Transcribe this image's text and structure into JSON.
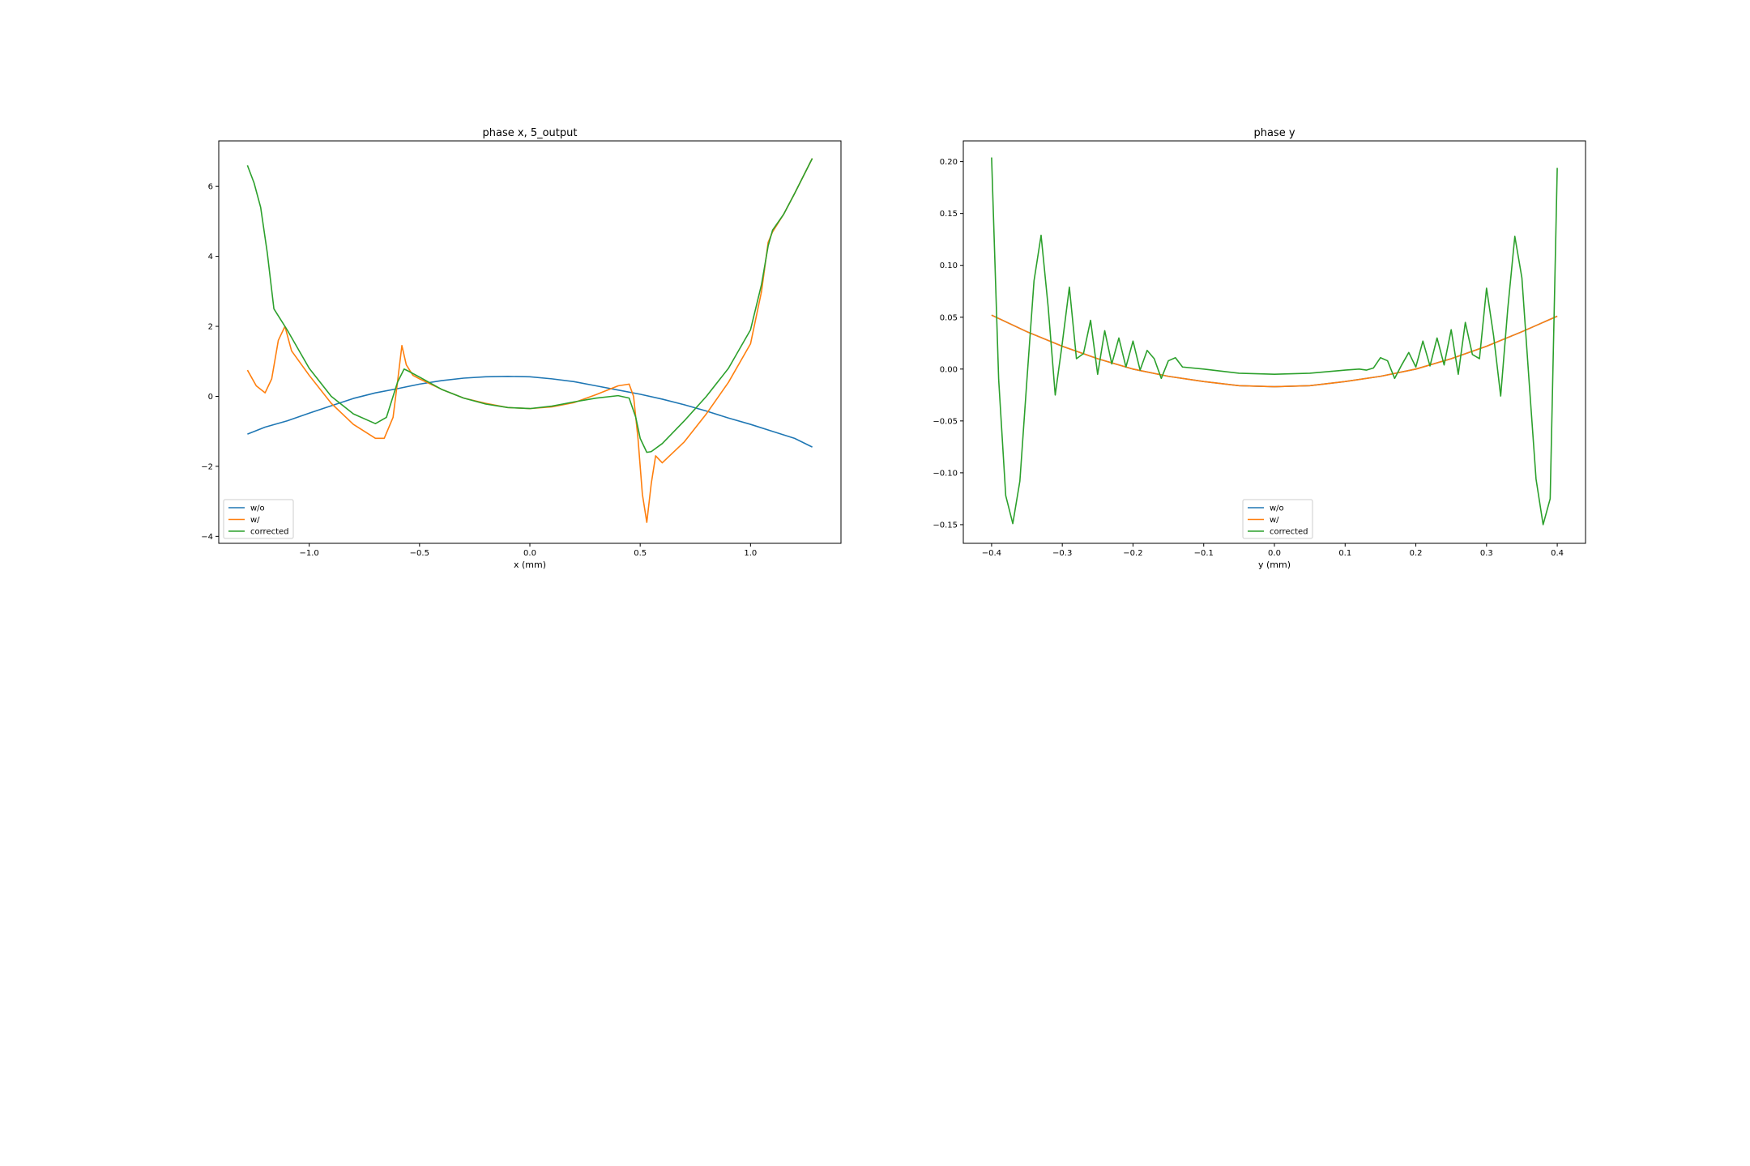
{
  "chart_data": [
    {
      "type": "line",
      "title": "phase x, 5_output",
      "xlabel": "x (mm)",
      "ylabel": "",
      "xlim": [
        -1.41,
        1.41
      ],
      "ylim": [
        -4.2,
        7.3
      ],
      "xticks": [
        -1.0,
        -0.5,
        0.0,
        0.5,
        1.0
      ],
      "xtick_labels": [
        "−1.0",
        "−0.5",
        "0.0",
        "0.5",
        "1.0"
      ],
      "yticks": [
        -4,
        -2,
        0,
        2,
        4,
        6
      ],
      "ytick_labels": [
        "−4",
        "−2",
        "0",
        "2",
        "4",
        "6"
      ],
      "grid": false,
      "legend_position": "lower-left",
      "series": [
        {
          "name": "w/o",
          "color": "#1f77b4",
          "x": [
            -1.28,
            -1.2,
            -1.1,
            -1.0,
            -0.9,
            -0.8,
            -0.7,
            -0.6,
            -0.5,
            -0.4,
            -0.3,
            -0.2,
            -0.1,
            0.0,
            0.1,
            0.2,
            0.3,
            0.4,
            0.5,
            0.6,
            0.7,
            0.8,
            0.9,
            1.0,
            1.1,
            1.2,
            1.28
          ],
          "y": [
            -1.08,
            -0.88,
            -0.7,
            -0.48,
            -0.27,
            -0.06,
            0.1,
            0.22,
            0.35,
            0.45,
            0.52,
            0.56,
            0.57,
            0.56,
            0.5,
            0.42,
            0.3,
            0.18,
            0.06,
            -0.08,
            -0.24,
            -0.42,
            -0.62,
            -0.8,
            -1.0,
            -1.2,
            -1.45
          ]
        },
        {
          "name": "w/",
          "color": "#ff7f0e",
          "x": [
            -1.28,
            -1.24,
            -1.2,
            -1.17,
            -1.14,
            -1.11,
            -1.08,
            -1.0,
            -0.9,
            -0.8,
            -0.7,
            -0.66,
            -0.62,
            -0.6,
            -0.58,
            -0.56,
            -0.53,
            -0.5,
            -0.4,
            -0.3,
            -0.2,
            -0.1,
            0.0,
            0.1,
            0.2,
            0.3,
            0.4,
            0.45,
            0.47,
            0.49,
            0.51,
            0.53,
            0.55,
            0.57,
            0.6,
            0.7,
            0.8,
            0.9,
            1.0,
            1.05,
            1.08,
            1.1,
            1.15,
            1.2,
            1.28
          ],
          "y": [
            0.75,
            0.3,
            0.1,
            0.5,
            1.6,
            2.0,
            1.3,
            0.6,
            -0.2,
            -0.8,
            -1.2,
            -1.2,
            -0.6,
            0.4,
            1.45,
            0.9,
            0.6,
            0.5,
            0.2,
            -0.05,
            -0.2,
            -0.32,
            -0.35,
            -0.3,
            -0.18,
            0.05,
            0.3,
            0.35,
            0.0,
            -1.2,
            -2.8,
            -3.6,
            -2.5,
            -1.7,
            -1.9,
            -1.3,
            -0.5,
            0.4,
            1.5,
            3.0,
            4.4,
            4.7,
            5.2,
            5.8,
            6.8
          ]
        },
        {
          "name": "corrected",
          "color": "#2ca02c",
          "x": [
            -1.28,
            -1.25,
            -1.22,
            -1.19,
            -1.16,
            -1.13,
            -1.1,
            -1.0,
            -0.9,
            -0.8,
            -0.7,
            -0.65,
            -0.6,
            -0.57,
            -0.55,
            -0.5,
            -0.4,
            -0.3,
            -0.2,
            -0.1,
            0.0,
            0.1,
            0.2,
            0.3,
            0.4,
            0.45,
            0.48,
            0.5,
            0.53,
            0.55,
            0.6,
            0.7,
            0.8,
            0.9,
            1.0,
            1.05,
            1.08,
            1.1,
            1.15,
            1.2,
            1.28
          ],
          "y": [
            6.6,
            6.1,
            5.4,
            4.1,
            2.5,
            2.2,
            1.9,
            0.8,
            0.0,
            -0.5,
            -0.78,
            -0.6,
            0.4,
            0.78,
            0.72,
            0.55,
            0.2,
            -0.05,
            -0.22,
            -0.32,
            -0.35,
            -0.28,
            -0.16,
            -0.05,
            0.02,
            -0.05,
            -0.6,
            -1.2,
            -1.6,
            -1.58,
            -1.35,
            -0.7,
            0.0,
            0.8,
            1.9,
            3.2,
            4.3,
            4.75,
            5.2,
            5.8,
            6.8
          ]
        }
      ]
    },
    {
      "type": "line",
      "title": "phase y",
      "xlabel": "y (mm)",
      "ylabel": "",
      "xlim": [
        -0.44,
        0.44
      ],
      "ylim": [
        -0.168,
        0.22
      ],
      "xticks": [
        -0.4,
        -0.3,
        -0.2,
        -0.1,
        0.0,
        0.1,
        0.2,
        0.3,
        0.4
      ],
      "xtick_labels": [
        "−0.4",
        "−0.3",
        "−0.2",
        "−0.1",
        "0.0",
        "0.1",
        "0.2",
        "0.3",
        "0.4"
      ],
      "yticks": [
        -0.15,
        -0.1,
        -0.05,
        0.0,
        0.05,
        0.1,
        0.15,
        0.2
      ],
      "ytick_labels": [
        "−0.15",
        "−0.10",
        "−0.05",
        "0.00",
        "0.05",
        "0.10",
        "0.15",
        "0.20"
      ],
      "grid": false,
      "legend_position": "lower-center",
      "series": [
        {
          "name": "w/o",
          "color": "#1f77b4",
          "x": [
            -0.4,
            -0.35,
            -0.3,
            -0.25,
            -0.2,
            -0.15,
            -0.1,
            -0.05,
            0.0,
            0.05,
            0.1,
            0.15,
            0.2,
            0.25,
            0.3,
            0.35,
            0.4
          ],
          "y": [
            0.052,
            0.036,
            0.022,
            0.01,
            0.0,
            -0.007,
            -0.012,
            -0.016,
            -0.017,
            -0.016,
            -0.012,
            -0.007,
            0.0,
            0.01,
            0.022,
            0.036,
            0.051
          ]
        },
        {
          "name": "w/",
          "color": "#ff7f0e",
          "x": [
            -0.4,
            -0.35,
            -0.3,
            -0.25,
            -0.2,
            -0.15,
            -0.1,
            -0.05,
            0.0,
            0.05,
            0.1,
            0.15,
            0.2,
            0.25,
            0.3,
            0.35,
            0.4
          ],
          "y": [
            0.052,
            0.036,
            0.022,
            0.01,
            0.0,
            -0.007,
            -0.012,
            -0.016,
            -0.017,
            -0.016,
            -0.012,
            -0.007,
            0.0,
            0.01,
            0.022,
            0.036,
            0.051
          ]
        },
        {
          "name": "corrected",
          "color": "#2ca02c",
          "x": [
            -0.4,
            -0.39,
            -0.38,
            -0.37,
            -0.36,
            -0.35,
            -0.34,
            -0.33,
            -0.32,
            -0.31,
            -0.3,
            -0.29,
            -0.28,
            -0.27,
            -0.26,
            -0.25,
            -0.24,
            -0.23,
            -0.22,
            -0.21,
            -0.2,
            -0.19,
            -0.18,
            -0.17,
            -0.16,
            -0.15,
            -0.14,
            -0.13,
            -0.1,
            -0.05,
            0.0,
            0.05,
            0.1,
            0.12,
            0.13,
            0.14,
            0.15,
            0.16,
            0.17,
            0.18,
            0.19,
            0.2,
            0.21,
            0.22,
            0.23,
            0.24,
            0.25,
            0.26,
            0.27,
            0.28,
            0.29,
            0.3,
            0.31,
            0.32,
            0.33,
            0.34,
            0.35,
            0.36,
            0.37,
            0.38,
            0.39,
            0.4
          ],
          "y": [
            0.204,
            -0.01,
            -0.122,
            -0.149,
            -0.108,
            -0.01,
            0.085,
            0.129,
            0.06,
            -0.025,
            0.025,
            0.079,
            0.01,
            0.015,
            0.047,
            -0.005,
            0.037,
            0.005,
            0.03,
            0.002,
            0.027,
            -0.001,
            0.018,
            0.01,
            -0.009,
            0.008,
            0.011,
            0.002,
            0.0,
            -0.004,
            -0.005,
            -0.004,
            -0.001,
            0.0,
            -0.001,
            0.001,
            0.011,
            0.008,
            -0.009,
            0.004,
            0.016,
            0.002,
            0.027,
            0.003,
            0.03,
            0.004,
            0.038,
            -0.005,
            0.045,
            0.014,
            0.01,
            0.078,
            0.032,
            -0.026,
            0.058,
            0.128,
            0.088,
            -0.01,
            -0.106,
            -0.15,
            -0.125,
            0.194
          ]
        }
      ]
    }
  ]
}
